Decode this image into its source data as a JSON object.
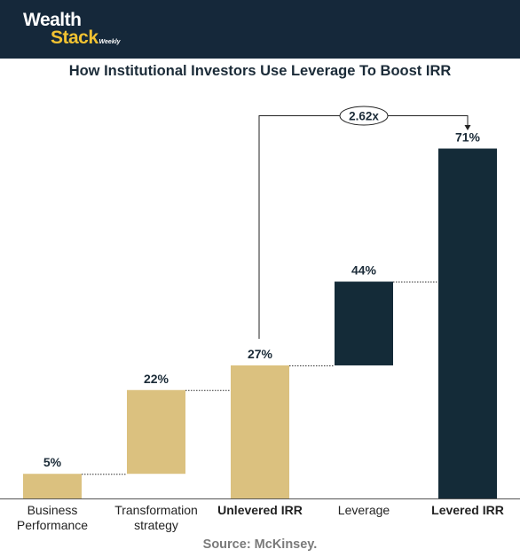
{
  "logo": {
    "line1": "Wealth",
    "line2": "Stack",
    "tag": "Weekly"
  },
  "title": "How Institutional Investors Use Leverage To Boost IRR",
  "source": "Source: McKinsey.",
  "colors": {
    "header_bg": "#15283a",
    "gold": "#dbc17f",
    "navy": "#142b38",
    "logo_accent": "#f1c232"
  },
  "chart_data": {
    "type": "bar",
    "subtype": "waterfall",
    "categories": [
      "Business Performance",
      "Transformation strategy",
      "Unlevered IRR",
      "Leverage",
      "Levered IRR"
    ],
    "category_lines": [
      [
        "Business",
        "Performance"
      ],
      [
        "Transformation",
        "strategy"
      ],
      [
        "Unlevered IRR"
      ],
      [
        "Leverage"
      ],
      [
        "Levered IRR"
      ]
    ],
    "bold_categories": [
      false,
      false,
      true,
      false,
      true
    ],
    "values": [
      5,
      22,
      27,
      44,
      71
    ],
    "value_labels": [
      "5%",
      "22%",
      "27%",
      "44%",
      "71%"
    ],
    "bar_kinds": [
      "step",
      "step",
      "total",
      "step",
      "total"
    ],
    "bar_colors": [
      "#dbc17f",
      "#dbc17f",
      "#dbc17f",
      "#142b38",
      "#142b38"
    ],
    "annotation": {
      "text": "2.62x",
      "from_category": "Unlevered IRR",
      "to_category": "Levered IRR"
    },
    "ylim": [
      0,
      80
    ],
    "grid": false,
    "legend": "none",
    "xlabel": "",
    "ylabel": ""
  }
}
